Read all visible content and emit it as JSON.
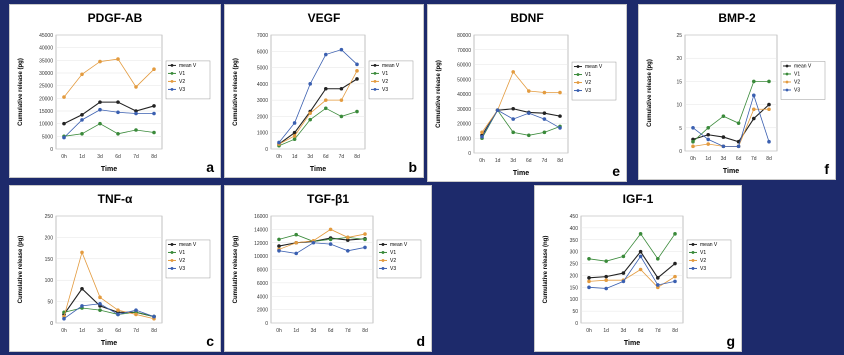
{
  "legend": [
    "mean V",
    "V1",
    "V2",
    "V3"
  ],
  "colors": {
    "mean V": "#222222",
    "V1": "#3a8a3a",
    "V2": "#e39b3f",
    "V3": "#3a5fb0"
  },
  "chart_data": [
    {
      "id": "p-pdgf",
      "type": "line",
      "title": "PDGF-AB",
      "letter": "a",
      "xlabel": "Time",
      "ylabel": "Cumulative release (pg)",
      "categories": [
        "0h",
        "1d",
        "3d",
        "6d",
        "7d",
        "8d"
      ],
      "ylim": [
        0,
        45000
      ],
      "yticks": [
        0,
        5000,
        10000,
        15000,
        20000,
        25000,
        30000,
        35000,
        40000,
        45000
      ],
      "series": [
        {
          "name": "mean V",
          "values": [
            10000,
            13500,
            18500,
            18500,
            15000,
            17000
          ]
        },
        {
          "name": "V1",
          "values": [
            5000,
            6000,
            10000,
            6000,
            7500,
            6500
          ]
        },
        {
          "name": "V2",
          "values": [
            20500,
            29500,
            34500,
            35500,
            24500,
            31500
          ]
        },
        {
          "name": "V3",
          "values": [
            4500,
            11500,
            15500,
            14500,
            14000,
            14000
          ]
        }
      ]
    },
    {
      "id": "p-vegf",
      "type": "line",
      "title": "VEGF",
      "letter": "b",
      "xlabel": "Time",
      "ylabel": "Cumulative release (pg)",
      "categories": [
        "0h",
        "1d",
        "3d",
        "6d",
        "7d",
        "8d"
      ],
      "ylim": [
        0,
        7000
      ],
      "yticks": [
        0,
        1000,
        2000,
        3000,
        4000,
        5000,
        6000,
        7000
      ],
      "series": [
        {
          "name": "mean V",
          "values": [
            300,
            1000,
            2300,
            3700,
            3700,
            4300
          ]
        },
        {
          "name": "V1",
          "values": [
            200,
            600,
            1800,
            2500,
            2000,
            2300
          ]
        },
        {
          "name": "V2",
          "values": [
            300,
            800,
            2200,
            3000,
            3000,
            4800
          ]
        },
        {
          "name": "V3",
          "values": [
            400,
            1600,
            4000,
            5800,
            6100,
            5200
          ]
        }
      ]
    },
    {
      "id": "p-bdnf",
      "type": "line",
      "title": "BDNF",
      "letter": "e",
      "xlabel": "Time",
      "ylabel": "Cumulative release (pg)",
      "categories": [
        "0h",
        "1d",
        "3d",
        "6d",
        "7d",
        "8d"
      ],
      "ylim": [
        0,
        80000
      ],
      "yticks": [
        0,
        10000,
        20000,
        30000,
        40000,
        50000,
        60000,
        70000,
        80000
      ],
      "series": [
        {
          "name": "mean V",
          "values": [
            12000,
            29000,
            30000,
            27500,
            27000,
            25000
          ]
        },
        {
          "name": "V1",
          "values": [
            10000,
            29000,
            14000,
            12000,
            14000,
            18000
          ]
        },
        {
          "name": "V2",
          "values": [
            14000,
            29000,
            55000,
            42000,
            41000,
            41000
          ]
        },
        {
          "name": "V3",
          "values": [
            11000,
            29000,
            23000,
            27000,
            23000,
            17000
          ]
        }
      ]
    },
    {
      "id": "p-bmp2",
      "type": "line",
      "title": "BMP-2",
      "letter": "f",
      "xlabel": "Time",
      "ylabel": "Cumulative release (pg)",
      "categories": [
        "0h",
        "1d",
        "3d",
        "6d",
        "7d",
        "8d"
      ],
      "ylim": [
        0,
        25
      ],
      "yticks": [
        0,
        5,
        10,
        15,
        20,
        25
      ],
      "series": [
        {
          "name": "mean V",
          "values": [
            2.5,
            3.5,
            3,
            2,
            7,
            10
          ]
        },
        {
          "name": "V1",
          "values": [
            2,
            5,
            7.5,
            6,
            15,
            15
          ]
        },
        {
          "name": "V2",
          "values": [
            1,
            1.5,
            1,
            1,
            9,
            9
          ]
        },
        {
          "name": "V3",
          "values": [
            5,
            2.5,
            1,
            1,
            12,
            2
          ]
        }
      ]
    },
    {
      "id": "p-tnf",
      "type": "line",
      "title": "TNF-α",
      "letter": "c",
      "xlabel": "Time",
      "ylabel": "Cumulative release (pg)",
      "categories": [
        "0h",
        "1d",
        "3d",
        "6d",
        "7d",
        "8d"
      ],
      "ylim": [
        0,
        250
      ],
      "yticks": [
        0,
        50,
        100,
        150,
        200,
        250
      ],
      "series": [
        {
          "name": "mean V",
          "values": [
            20,
            80,
            40,
            25,
            25,
            15
          ]
        },
        {
          "name": "V1",
          "values": [
            25,
            35,
            30,
            20,
            25,
            15
          ]
        },
        {
          "name": "V2",
          "values": [
            15,
            165,
            60,
            30,
            20,
            10
          ]
        },
        {
          "name": "V3",
          "values": [
            10,
            40,
            45,
            20,
            30,
            15
          ]
        }
      ]
    },
    {
      "id": "p-tgf",
      "type": "line",
      "title": "TGF-β1",
      "letter": "d",
      "xlabel": "",
      "ylabel": "Cumulative release (pg)",
      "categories": [
        "0h",
        "1d",
        "3d",
        "6d",
        "7d",
        "8d"
      ],
      "ylim": [
        0,
        16000
      ],
      "yticks": [
        0,
        2000,
        4000,
        6000,
        8000,
        10000,
        12000,
        14000,
        16000
      ],
      "series": [
        {
          "name": "mean V",
          "values": [
            11500,
            12000,
            12200,
            12700,
            12400,
            12600
          ]
        },
        {
          "name": "V1",
          "values": [
            12500,
            13200,
            12200,
            12500,
            12800,
            12500
          ]
        },
        {
          "name": "V2",
          "values": [
            11000,
            12000,
            12300,
            14000,
            12800,
            13300
          ]
        },
        {
          "name": "V3",
          "values": [
            10800,
            10400,
            12000,
            11800,
            10800,
            11300
          ]
        }
      ]
    },
    {
      "id": "p-igf1",
      "type": "line",
      "title": "IGF-1",
      "letter": "g",
      "xlabel": "Time",
      "ylabel": "Cumulative release (ng)",
      "categories": [
        "0h",
        "1d",
        "3d",
        "6d",
        "7d",
        "8d"
      ],
      "ylim": [
        0,
        450
      ],
      "yticks": [
        0,
        50,
        100,
        150,
        200,
        250,
        300,
        350,
        400,
        450
      ],
      "series": [
        {
          "name": "mean V",
          "values": [
            190,
            195,
            210,
            300,
            190,
            250
          ]
        },
        {
          "name": "V1",
          "values": [
            270,
            260,
            280,
            375,
            270,
            375
          ]
        },
        {
          "name": "V2",
          "values": [
            175,
            180,
            180,
            225,
            150,
            195
          ]
        },
        {
          "name": "V3",
          "values": [
            150,
            145,
            175,
            280,
            160,
            175
          ]
        }
      ]
    }
  ]
}
